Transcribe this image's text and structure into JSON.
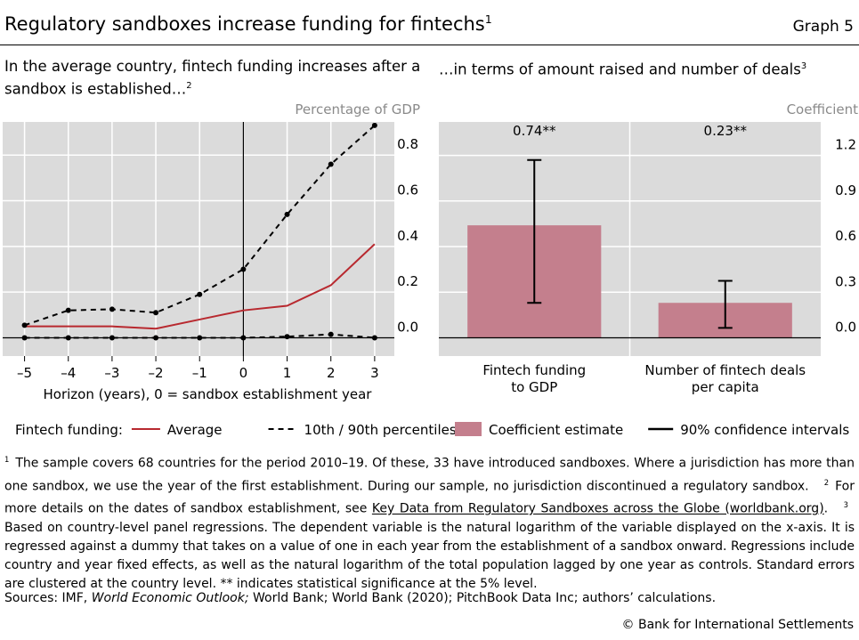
{
  "header": {
    "title": "Regulatory sandboxes increase funding for fintechs",
    "title_sup": "1",
    "graph_label": "Graph 5"
  },
  "chart_data": [
    {
      "type": "line",
      "title": "In the average country, fintech funding increases after a sandbox is established…",
      "title_sup": "2",
      "y_label": "Percentage of GDP",
      "x_label": "Horizon (years), 0 = sandbox establishment year",
      "x": [
        -5,
        -4,
        -3,
        -2,
        -1,
        0,
        1,
        2,
        3
      ],
      "series": [
        {
          "name": "Average",
          "color": "#b8292f",
          "values": [
            0.05,
            0.05,
            0.05,
            0.04,
            0.08,
            0.12,
            0.14,
            0.23,
            0.41
          ]
        },
        {
          "name": "10th / 90th percentiles",
          "color": "#000000",
          "dash": true,
          "markers": true,
          "values": [
            0.055,
            0.12,
            0.125,
            0.11,
            0.19,
            0.3,
            0.54,
            0.76,
            0.93
          ]
        },
        {
          "color": "#000000",
          "dash": true,
          "markers": true,
          "values": [
            0,
            0,
            0,
            0,
            0,
            0,
            0.005,
            0.015,
            0
          ]
        }
      ],
      "xlim": [
        -5.5,
        3.45
      ],
      "ylim": [
        -0.08,
        0.945
      ],
      "xticks": [
        {
          "value": -5,
          "label": "–5"
        },
        {
          "value": -4,
          "label": "–4"
        },
        {
          "value": -3,
          "label": "–3"
        },
        {
          "value": -2,
          "label": "–2"
        },
        {
          "value": -1,
          "label": "–1"
        },
        0,
        1,
        2,
        3
      ],
      "yticks": [
        {
          "value": 0,
          "label": "0.0"
        },
        0.2,
        0.4,
        0.6,
        0.8
      ],
      "grid": true,
      "vline": 0,
      "legend_title": "Fintech funding:",
      "legend": "bottom"
    },
    {
      "type": "bar",
      "title": "…in terms of amount raised and number of deals",
      "title_sup": "3",
      "y_label": "Coefficient",
      "categories": [
        "Fintech funding\nto GDP",
        "Number of fintech deals\nper capita"
      ],
      "series": [
        {
          "name": "Coefficient estimate",
          "color": "#c47f8d",
          "values": [
            0.74,
            0.23
          ],
          "value_labels": [
            "0.74**",
            "0.23**"
          ]
        }
      ],
      "error": {
        "name": "90% confidence intervals",
        "color": "#000000",
        "lower": [
          0.23,
          0.065
        ],
        "upper": [
          1.17,
          0.375
        ]
      },
      "ylim": [
        -0.12,
        1.42
      ],
      "yticks": [
        {
          "value": 0,
          "label": "0.0"
        },
        0.3,
        0.6,
        0.9,
        1.2
      ],
      "grid": true,
      "legend": "bottom"
    }
  ],
  "footnotes": [
    {
      "marker": "1",
      "text": "The sample covers 68 countries for the period 2010–19. Of these, 33 have introduced sandboxes. Where a jurisdiction has more than one sandbox, we use the year of the first establishment. During our sample, no jurisdiction discontinued a regulatory sandbox."
    },
    {
      "marker": "2",
      "text": "For more details on the dates of sandbox establishment, see ",
      "link": "Key Data from Regulatory Sandboxes across the Globe (worldbank.org)",
      "after": "."
    },
    {
      "marker": "3",
      "text": "Based on country-level panel regressions. The dependent variable is the natural logarithm of the variable displayed on the x-axis. It is regressed against a dummy that takes on a value of one in each year from the establishment of a sandbox onward. Regressions include country and year fixed effects, as well as the natural logarithm of the total population lagged by one year as controls. Standard errors are clustered at the country level. ** indicates statistical significance at the 5% level."
    }
  ],
  "sources": {
    "before": "Sources: IMF, ",
    "italic": "World Economic Outlook;",
    "after": " World Bank; World Bank (2020); PitchBook Data Inc; authors’ calculations."
  },
  "copyright": "© Bank for International Settlements"
}
